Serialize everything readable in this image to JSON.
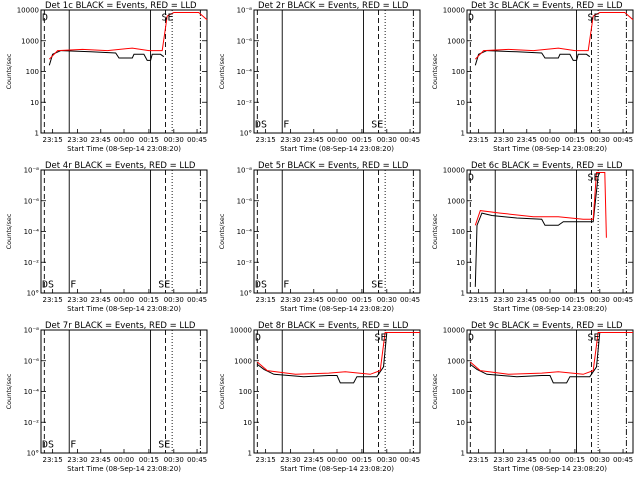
{
  "chart_data": [
    {
      "type": "line",
      "title": "Det 1c BLACK = Events, RED = LLD",
      "ylabel": "Counts/sec",
      "xlabel": "Start Time (08-Sep-14 23:08:20)",
      "log": true,
      "ylim": [
        1,
        10000
      ],
      "ytick_labels": [
        "1",
        "10",
        "100",
        "1000",
        "10000"
      ],
      "xtick_labels": [
        "23:15",
        "23:30",
        "23:45",
        "00:00",
        "00:15",
        "00:30",
        "00:45"
      ],
      "shape": "A",
      "markers": [
        "D",
        "SE"
      ],
      "series": [
        {
          "name": "BLACK = Events",
          "color": "#000000"
        },
        {
          "name": "RED = LLD",
          "color": "#ff0000"
        }
      ]
    },
    {
      "type": "line",
      "title": "Det 2r BLACK = Events, RED = LLD",
      "ylabel": "Counts/sec",
      "xlabel": "Start Time (08-Sep-14 23:08:20)",
      "log": true,
      "ylim": [
        1,
        1e-08
      ],
      "ytick_labels": [
        "10°",
        "10⁻²",
        "10⁻⁴",
        "10⁻⁶",
        "10⁻⁸"
      ],
      "xtick_labels": [
        "23:15",
        "23:30",
        "23:45",
        "00:00",
        "00:15",
        "00:30",
        "00:45"
      ],
      "shape": "none",
      "markers": [
        "DS",
        "F",
        "SE"
      ],
      "series": [
        {
          "name": "BLACK = Events",
          "color": "#000000"
        },
        {
          "name": "RED = LLD",
          "color": "#ff0000"
        }
      ]
    },
    {
      "type": "line",
      "title": "Det 3c BLACK = Events, RED = LLD",
      "ylabel": "Counts/sec",
      "xlabel": "Start Time (08-Sep-14 23:08:20)",
      "log": true,
      "ylim": [
        1,
        10000
      ],
      "ytick_labels": [
        "1",
        "10",
        "100",
        "1000",
        "10000"
      ],
      "xtick_labels": [
        "23:15",
        "23:30",
        "23:45",
        "00:00",
        "00:15",
        "00:30",
        "00:45"
      ],
      "shape": "A",
      "markers": [
        "D",
        "SE"
      ],
      "series": [
        {
          "name": "BLACK = Events",
          "color": "#000000"
        },
        {
          "name": "RED = LLD",
          "color": "#ff0000"
        }
      ]
    },
    {
      "type": "line",
      "title": "Det 4r BLACK = Events, RED = LLD",
      "ylabel": "Counts/sec",
      "xlabel": "Start Time (08-Sep-14 23:08:20)",
      "log": true,
      "ylim": [
        1,
        1e-08
      ],
      "ytick_labels": [
        "10°",
        "10⁻²",
        "10⁻⁴",
        "10⁻⁶",
        "10⁻⁸"
      ],
      "xtick_labels": [
        "23:15",
        "23:30",
        "23:45",
        "00:00",
        "00:15",
        "00:30",
        "00:45"
      ],
      "shape": "none",
      "markers": [
        "DS",
        "F",
        "SE"
      ],
      "series": [
        {
          "name": "BLACK = Events",
          "color": "#000000"
        },
        {
          "name": "RED = LLD",
          "color": "#ff0000"
        }
      ]
    },
    {
      "type": "line",
      "title": "Det 5r BLACK = Events, RED = LLD",
      "ylabel": "Counts/sec",
      "xlabel": "Start Time (08-Sep-14 23:08:20)",
      "log": true,
      "ylim": [
        1,
        1e-08
      ],
      "ytick_labels": [
        "10°",
        "10⁻²",
        "10⁻⁴",
        "10⁻⁶",
        "10⁻⁸"
      ],
      "xtick_labels": [
        "23:15",
        "23:30",
        "23:45",
        "00:00",
        "00:15",
        "00:30",
        "00:45"
      ],
      "shape": "none",
      "markers": [
        "DS",
        "F",
        "SE"
      ],
      "series": [
        {
          "name": "BLACK = Events",
          "color": "#000000"
        },
        {
          "name": "RED = LLD",
          "color": "#ff0000"
        }
      ]
    },
    {
      "type": "line",
      "title": "Det 6c BLACK = Events, RED = LLD",
      "ylabel": "Counts/sec",
      "xlabel": "Start Time (08-Sep-14 23:08:20)",
      "log": true,
      "ylim": [
        1,
        10000
      ],
      "ytick_labels": [
        "1",
        "10",
        "100",
        "1000",
        "10000"
      ],
      "xtick_labels": [
        "23:15",
        "23:30",
        "23:45",
        "00:00",
        "00:15",
        "00:30",
        "00:45"
      ],
      "shape": "B",
      "markers": [
        "D",
        "SE"
      ],
      "series": [
        {
          "name": "BLACK = Events",
          "color": "#000000"
        },
        {
          "name": "RED = LLD",
          "color": "#ff0000"
        }
      ]
    },
    {
      "type": "line",
      "title": "Det 7r BLACK = Events, RED = LLD",
      "ylabel": "Counts/sec",
      "xlabel": "Start Time (08-Sep-14 23:08:20)",
      "log": true,
      "ylim": [
        1,
        1e-08
      ],
      "ytick_labels": [
        "10°",
        "10⁻²",
        "10⁻⁴",
        "10⁻⁶",
        "10⁻⁸"
      ],
      "xtick_labels": [
        "23:15",
        "23:30",
        "23:45",
        "00:00",
        "00:15",
        "00:30",
        "00:45"
      ],
      "shape": "none",
      "markers": [
        "DS",
        "F",
        "SE"
      ],
      "series": [
        {
          "name": "BLACK = Events",
          "color": "#000000"
        },
        {
          "name": "RED = LLD",
          "color": "#ff0000"
        }
      ]
    },
    {
      "type": "line",
      "title": "Det 8r BLACK = Events, RED = LLD",
      "ylabel": "Counts/sec",
      "xlabel": "Start Time (08-Sep-14 23:08:20)",
      "log": true,
      "ylim": [
        1,
        10000
      ],
      "ytick_labels": [
        "1",
        "10",
        "100",
        "1000",
        "10000"
      ],
      "xtick_labels": [
        "23:15",
        "23:30",
        "23:45",
        "00:00",
        "00:15",
        "00:30",
        "00:45"
      ],
      "shape": "C",
      "markers": [
        "D",
        "SE"
      ],
      "series": [
        {
          "name": "BLACK = Events",
          "color": "#000000"
        },
        {
          "name": "RED = LLD",
          "color": "#ff0000"
        }
      ]
    },
    {
      "type": "line",
      "title": "Det 9c BLACK = Events, RED = LLD",
      "ylabel": "Counts/sec",
      "xlabel": "Start Time (08-Sep-14 23:08:20)",
      "log": true,
      "ylim": [
        1,
        10000
      ],
      "ytick_labels": [
        "1",
        "10",
        "100",
        "1000",
        "10000"
      ],
      "xtick_labels": [
        "23:15",
        "23:30",
        "23:45",
        "00:00",
        "00:15",
        "00:30",
        "00:45"
      ],
      "shape": "C",
      "markers": [
        "D",
        "SE"
      ],
      "series": [
        {
          "name": "BLACK = Events",
          "color": "#000000"
        },
        {
          "name": "RED = LLD",
          "color": "#ff0000"
        }
      ]
    }
  ]
}
